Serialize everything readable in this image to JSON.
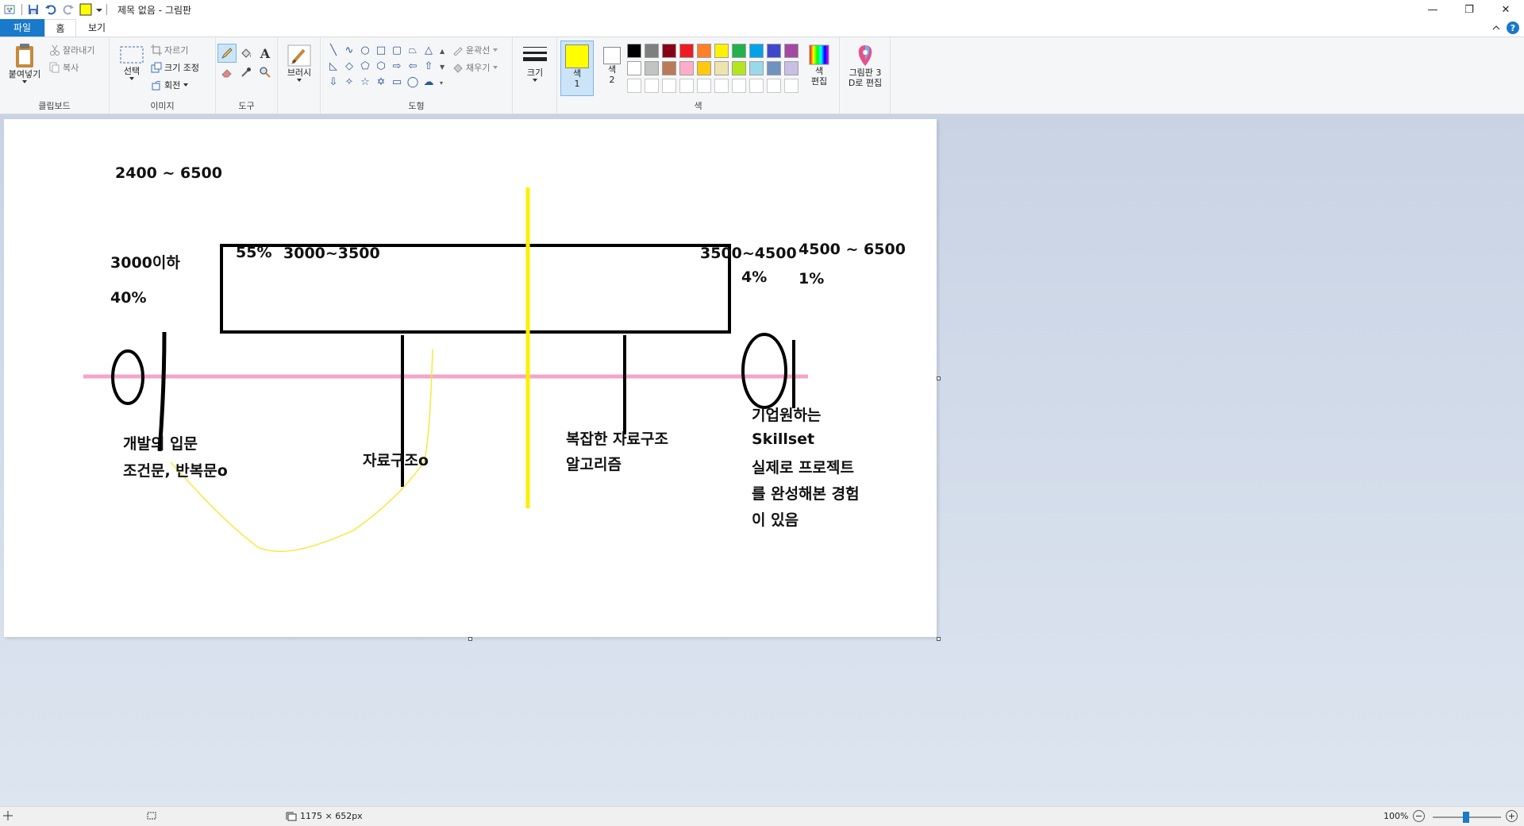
{
  "window": {
    "title": "제목 없음 - 그림판",
    "minimize": "—",
    "restore": "❐",
    "close": "✕"
  },
  "tabs": {
    "file": "파일",
    "home": "홈",
    "view": "보기"
  },
  "ribbon": {
    "clipboard": {
      "label": "클립보드",
      "paste": "붙여넣기",
      "cut": "잘라내기",
      "copy": "복사"
    },
    "image": {
      "label": "이미지",
      "select": "선택",
      "crop": "자르기",
      "resize": "크기 조정",
      "rotate": "회전"
    },
    "tools": {
      "label": "도구"
    },
    "brush": {
      "label": "브러시"
    },
    "shapes": {
      "label": "도형",
      "outline": "윤곽선",
      "fill": "채우기"
    },
    "size": {
      "label": "크기"
    },
    "colors": {
      "label": "색",
      "color1": "색\n1",
      "color1_a": "색",
      "color1_b": "1",
      "color2_a": "색",
      "color2_b": "2",
      "edit_a": "색",
      "edit_b": "편집",
      "color1_value": "#ffff00",
      "color2_value": "#ffffff",
      "palette": [
        "#000000",
        "#7f7f7f",
        "#880015",
        "#ed1c24",
        "#ff7f27",
        "#fff200",
        "#22b14c",
        "#00a2e8",
        "#3f48cc",
        "#a349a4",
        "#ffffff",
        "#c3c3c3",
        "#b97a57",
        "#ffaec9",
        "#ffc90e",
        "#efe4b0",
        "#b5e61d",
        "#99d9ea",
        "#7092be",
        "#c8bfe7",
        "#ffffff",
        "#ffffff",
        "#ffffff",
        "#ffffff",
        "#ffffff",
        "#ffffff",
        "#ffffff",
        "#ffffff",
        "#ffffff",
        "#ffffff"
      ]
    },
    "paint3d": {
      "line1": "그림판 3",
      "line2": "D로 편집"
    }
  },
  "canvas_text": {
    "range_top": "2400 ~ 6500",
    "under3000": "3000이하",
    "pct40": "40%",
    "pct55": "55%",
    "range_mid": "3000~3500",
    "range_high": "3500~4500",
    "pct4": "4%",
    "range_top2": "4500 ~ 6500",
    "pct1": "1%",
    "entry_line1": "개발의 입문",
    "entry_line2": "조건문, 반복문o",
    "datastruct": "자료구조o",
    "complex_line1": "복잡한 자료구조",
    "complex_line2": "알고리즘",
    "company_line1": "기업원하는",
    "company_line2": "Skillset",
    "company_line3": "실제로 프로젝트",
    "company_line4": "를 완성해본 경험",
    "company_line5": "이 있음"
  },
  "status": {
    "canvas_size": "1175 × 652px",
    "zoom": "100%",
    "zoom_out": "−",
    "zoom_in": "+"
  }
}
